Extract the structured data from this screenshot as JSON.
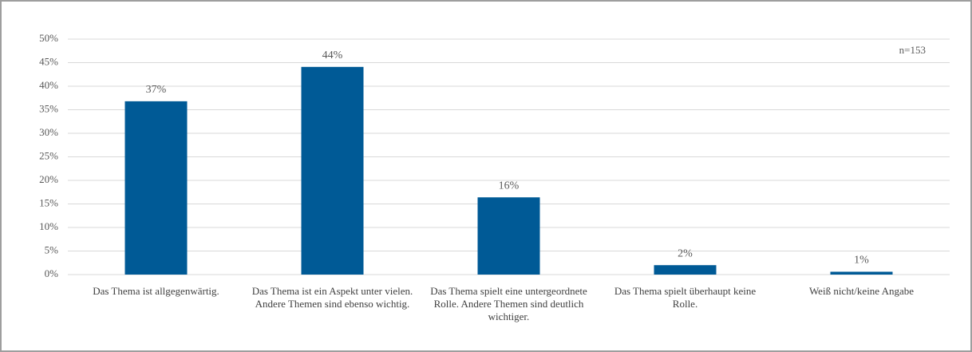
{
  "chart_data": {
    "type": "bar",
    "categories": [
      "Das Thema ist allgegenwärtig.",
      "Das Thema ist ein Aspekt unter vielen. Andere Themen sind ebenso wichtig.",
      "Das Thema spielt eine untergeordnete Rolle. Andere Themen sind deutlich wichtiger.",
      "Das Thema spielt überhaupt keine Rolle.",
      "Weiß nicht/keine Angabe"
    ],
    "values": [
      36.8,
      44.1,
      16.4,
      2.0,
      0.6
    ],
    "value_labels": [
      "37%",
      "44%",
      "16%",
      "2%",
      "1%"
    ],
    "color": "#005a96",
    "ylim": [
      0,
      50
    ],
    "yticks": [
      {
        "value": 0,
        "label": "0%"
      },
      {
        "value": 5,
        "label": "5%"
      },
      {
        "value": 10,
        "label": "10%"
      },
      {
        "value": 15,
        "label": "15%"
      },
      {
        "value": 20,
        "label": "20%"
      },
      {
        "value": 25,
        "label": "25%"
      },
      {
        "value": 30,
        "label": "30%"
      },
      {
        "value": 35,
        "label": "35%"
      },
      {
        "value": 40,
        "label": "40%"
      },
      {
        "value": 45,
        "label": "45%"
      },
      {
        "value": 50,
        "label": "50%"
      }
    ],
    "grid": true,
    "annotation": "n=153"
  }
}
